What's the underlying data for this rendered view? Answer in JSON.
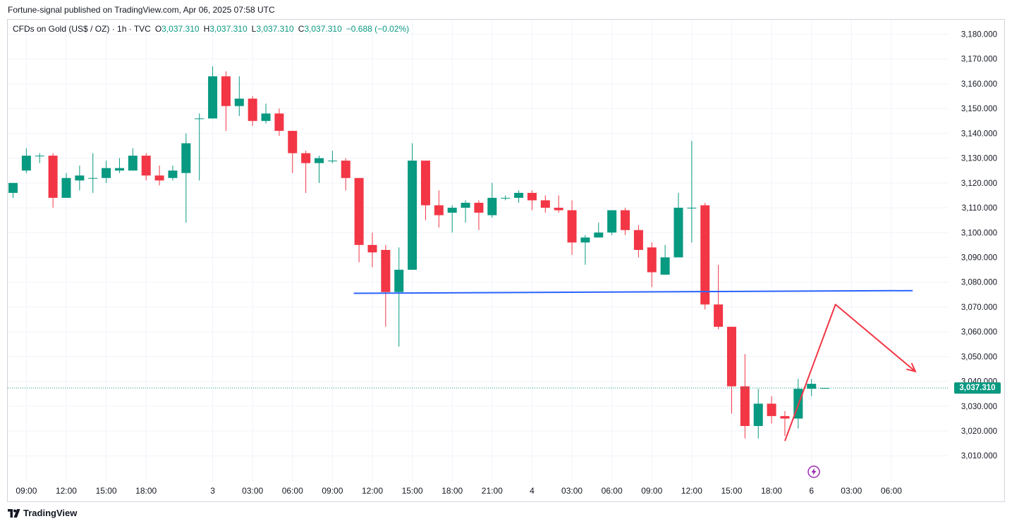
{
  "header": {
    "publish_line": "Fortune-signal published on TradingView.com, Apr 06, 2025 07:58 UTC"
  },
  "legend": {
    "symbol": "CFDs on Gold (US$ / OZ) · 1h · TVC",
    "open_label": "O",
    "open_value": "3,037.310",
    "high_label": "H",
    "high_value": "3,037.310",
    "low_label": "L",
    "low_value": "3,037.310",
    "close_label": "C",
    "close_value": "3,037.310",
    "change": "−0.688 (−0.02%)"
  },
  "brand": {
    "name": "TradingView"
  },
  "price_badge": {
    "value": "3,037.310"
  },
  "icons": {
    "flash": "lightning-bolt-icon",
    "logo": "tradingview-logo-icon"
  },
  "colors": {
    "up": "#089981",
    "down": "#f23645",
    "trend_line": "#2962ff",
    "projection": "#f23645",
    "grid": "#f0f3fa",
    "axis_text": "#131722"
  },
  "chart_data": {
    "type": "candlestick",
    "title": "",
    "ylim": [
      3002,
      3188
    ],
    "y_ticks": [
      3180,
      3170,
      3160,
      3150,
      3140,
      3130,
      3120,
      3110,
      3100,
      3090,
      3080,
      3070,
      3060,
      3050,
      3040,
      3030,
      3020,
      3010
    ],
    "y_tick_labels": [
      "3,180.000",
      "3,170.000",
      "3,160.000",
      "3,150.000",
      "3,140.000",
      "3,130.000",
      "3,120.000",
      "3,110.000",
      "3,100.000",
      "3,090.000",
      "3,080.000",
      "3,070.000",
      "3,060.000",
      "3,050.000",
      "3,040.000",
      "3,030.000",
      "3,020.000",
      "3,010.000"
    ],
    "x_ticks": [
      {
        "i": 1,
        "label": "09:00"
      },
      {
        "i": 4,
        "label": "12:00"
      },
      {
        "i": 7,
        "label": "15:00"
      },
      {
        "i": 10,
        "label": "18:00"
      },
      {
        "i": 15,
        "label": "3"
      },
      {
        "i": 18,
        "label": "03:00"
      },
      {
        "i": 21,
        "label": "06:00"
      },
      {
        "i": 24,
        "label": "09:00"
      },
      {
        "i": 27,
        "label": "12:00"
      },
      {
        "i": 30,
        "label": "15:00"
      },
      {
        "i": 33,
        "label": "18:00"
      },
      {
        "i": 36,
        "label": "21:00"
      },
      {
        "i": 39,
        "label": "4"
      },
      {
        "i": 42,
        "label": "03:00"
      },
      {
        "i": 45,
        "label": "06:00"
      },
      {
        "i": 48,
        "label": "09:00"
      },
      {
        "i": 51,
        "label": "12:00"
      },
      {
        "i": 54,
        "label": "15:00"
      },
      {
        "i": 57,
        "label": "18:00"
      },
      {
        "i": 60,
        "label": "6"
      },
      {
        "i": 63,
        "label": "03:00"
      },
      {
        "i": 66,
        "label": "06:00"
      }
    ],
    "candles": [
      {
        "o": 3116,
        "h": 3120,
        "l": 3114,
        "c": 3120
      },
      {
        "o": 3125,
        "h": 3134,
        "l": 3124,
        "c": 3131
      },
      {
        "o": 3131,
        "h": 3132,
        "l": 3128,
        "c": 3131
      },
      {
        "o": 3131,
        "h": 3132,
        "l": 3110,
        "c": 3114
      },
      {
        "o": 3114,
        "h": 3124,
        "l": 3114,
        "c": 3122
      },
      {
        "o": 3121,
        "h": 3127,
        "l": 3117,
        "c": 3123
      },
      {
        "o": 3122,
        "h": 3132,
        "l": 3116,
        "c": 3122
      },
      {
        "o": 3122,
        "h": 3129,
        "l": 3120,
        "c": 3126
      },
      {
        "o": 3125,
        "h": 3130,
        "l": 3124,
        "c": 3126
      },
      {
        "o": 3125,
        "h": 3134,
        "l": 3125,
        "c": 3131
      },
      {
        "o": 3131,
        "h": 3132,
        "l": 3121,
        "c": 3123
      },
      {
        "o": 3123,
        "h": 3127,
        "l": 3119,
        "c": 3121
      },
      {
        "o": 3122,
        "h": 3127,
        "l": 3121,
        "c": 3125
      },
      {
        "o": 3124,
        "h": 3140,
        "l": 3104,
        "c": 3136
      },
      {
        "o": 3146,
        "h": 3148,
        "l": 3121,
        "c": 3146
      },
      {
        "o": 3146,
        "h": 3167,
        "l": 3146,
        "c": 3163
      },
      {
        "o": 3163,
        "h": 3165,
        "l": 3141,
        "c": 3151
      },
      {
        "o": 3151,
        "h": 3163,
        "l": 3147,
        "c": 3154
      },
      {
        "o": 3154,
        "h": 3155,
        "l": 3143,
        "c": 3145
      },
      {
        "o": 3145,
        "h": 3152,
        "l": 3144,
        "c": 3148
      },
      {
        "o": 3148,
        "h": 3150,
        "l": 3139,
        "c": 3141
      },
      {
        "o": 3141,
        "h": 3141,
        "l": 3124,
        "c": 3132
      },
      {
        "o": 3132,
        "h": 3133,
        "l": 3116,
        "c": 3128
      },
      {
        "o": 3128,
        "h": 3131,
        "l": 3120,
        "c": 3130
      },
      {
        "o": 3129,
        "h": 3133,
        "l": 3128,
        "c": 3129
      },
      {
        "o": 3129,
        "h": 3130,
        "l": 3117,
        "c": 3122
      },
      {
        "o": 3122,
        "h": 3122,
        "l": 3088,
        "c": 3095
      },
      {
        "o": 3095,
        "h": 3100,
        "l": 3086,
        "c": 3092
      },
      {
        "o": 3093,
        "h": 3095,
        "l": 3062,
        "c": 3076
      },
      {
        "o": 3076,
        "h": 3094,
        "l": 3054,
        "c": 3085
      },
      {
        "o": 3085,
        "h": 3136,
        "l": 3085,
        "c": 3129
      },
      {
        "o": 3129,
        "h": 3129,
        "l": 3105,
        "c": 3111
      },
      {
        "o": 3111,
        "h": 3117,
        "l": 3102,
        "c": 3107
      },
      {
        "o": 3108,
        "h": 3111,
        "l": 3100,
        "c": 3110
      },
      {
        "o": 3110,
        "h": 3113,
        "l": 3104,
        "c": 3112
      },
      {
        "o": 3112,
        "h": 3113,
        "l": 3101,
        "c": 3108
      },
      {
        "o": 3107,
        "h": 3120,
        "l": 3106,
        "c": 3114
      },
      {
        "o": 3114,
        "h": 3115,
        "l": 3113,
        "c": 3114
      },
      {
        "o": 3114,
        "h": 3117,
        "l": 3112,
        "c": 3116
      },
      {
        "o": 3116,
        "h": 3117,
        "l": 3109,
        "c": 3113
      },
      {
        "o": 3113,
        "h": 3115,
        "l": 3108,
        "c": 3110
      },
      {
        "o": 3110,
        "h": 3115,
        "l": 3108,
        "c": 3109
      },
      {
        "o": 3109,
        "h": 3113,
        "l": 3091,
        "c": 3096
      },
      {
        "o": 3096,
        "h": 3099,
        "l": 3087,
        "c": 3098
      },
      {
        "o": 3098,
        "h": 3104,
        "l": 3098,
        "c": 3100
      },
      {
        "o": 3100,
        "h": 3109,
        "l": 3099,
        "c": 3109
      },
      {
        "o": 3109,
        "h": 3110,
        "l": 3099,
        "c": 3101
      },
      {
        "o": 3101,
        "h": 3103,
        "l": 3090,
        "c": 3093
      },
      {
        "o": 3094,
        "h": 3096,
        "l": 3078,
        "c": 3084
      },
      {
        "o": 3083,
        "h": 3095,
        "l": 3083,
        "c": 3090
      },
      {
        "o": 3090,
        "h": 3116,
        "l": 3090,
        "c": 3110
      },
      {
        "o": 3110,
        "h": 3137,
        "l": 3096,
        "c": 3110
      },
      {
        "o": 3111,
        "h": 3112,
        "l": 3069,
        "c": 3071
      },
      {
        "o": 3071,
        "h": 3087,
        "l": 3061,
        "c": 3062
      },
      {
        "o": 3062,
        "h": 3062,
        "l": 3027,
        "c": 3038
      },
      {
        "o": 3038,
        "h": 3051,
        "l": 3017,
        "c": 3022
      },
      {
        "o": 3022,
        "h": 3037,
        "l": 3017,
        "c": 3031
      },
      {
        "o": 3031,
        "h": 3034,
        "l": 3023,
        "c": 3026
      },
      {
        "o": 3026,
        "h": 3028,
        "l": 3018,
        "c": 3025
      },
      {
        "o": 3025,
        "h": 3041,
        "l": 3021,
        "c": 3037
      },
      {
        "o": 3037,
        "h": 3041,
        "l": 3034,
        "c": 3039
      },
      {
        "o": 3037.31,
        "h": 3037.31,
        "l": 3037.31,
        "c": 3037.31
      }
    ],
    "last_price": 3037.31,
    "annotations": [
      {
        "type": "horizontal-line",
        "label": "",
        "points": [
          {
            "i": 25.6,
            "y": 3075.5
          },
          {
            "i": 67.6,
            "y": 3076.6
          }
        ]
      },
      {
        "type": "projection-arrow",
        "label": "",
        "points": [
          {
            "i": 58.0,
            "y": 3016
          },
          {
            "i": 61.8,
            "y": 3071
          },
          {
            "i": 67.8,
            "y": 3044
          }
        ]
      }
    ]
  }
}
